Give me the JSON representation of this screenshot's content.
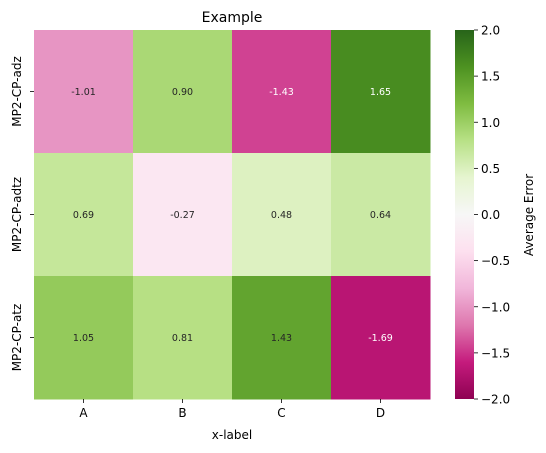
{
  "chart_data": {
    "type": "heatmap",
    "title": "Example",
    "xlabel": "x-label",
    "ylabel": "",
    "x_categories": [
      "A",
      "B",
      "C",
      "D"
    ],
    "y_categories": [
      "MP2-CP-adz",
      "MP2-CP-adtz",
      "MP2-CP-atz"
    ],
    "values": [
      [
        -1.01,
        0.9,
        -1.43,
        1.65
      ],
      [
        0.69,
        -0.27,
        0.48,
        0.64
      ],
      [
        1.05,
        0.81,
        1.43,
        -1.69
      ]
    ],
    "value_labels": [
      [
        "-1.01",
        "0.90",
        "-1.43",
        "1.65"
      ],
      [
        "0.69",
        "-0.27",
        "0.48",
        "0.64"
      ],
      [
        "1.05",
        "0.81",
        "1.43",
        "-1.69"
      ]
    ],
    "colorbar": {
      "label": "Average Error",
      "range": [
        -2.0,
        2.0
      ],
      "ticks": [
        2.0,
        1.5,
        1.0,
        0.5,
        0.0,
        -0.5,
        -1.0,
        -1.5,
        -2.0
      ],
      "tick_labels": [
        "2.0",
        "1.5",
        "1.0",
        "0.5",
        "0.0",
        "−0.5",
        "−1.0",
        "−1.5",
        "−2.0"
      ],
      "colormap": "PiYG",
      "colormap_stops": [
        "#8e0152",
        "#c51b7d",
        "#de77ae",
        "#f1b6da",
        "#fde0ef",
        "#f7f7f7",
        "#e6f5d0",
        "#b8e186",
        "#7fbc41",
        "#4d9221",
        "#276419"
      ]
    }
  }
}
